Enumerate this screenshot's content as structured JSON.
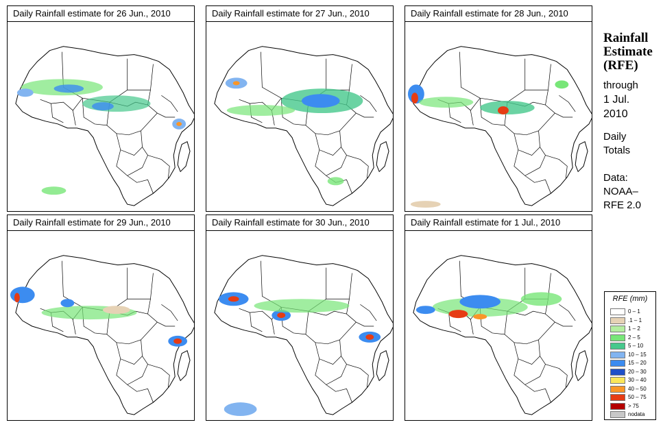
{
  "panels": [
    {
      "title": "Daily Rainfall estimate for  26 Jun., 2010"
    },
    {
      "title": "Daily Rainfall estimate for  27 Jun., 2010"
    },
    {
      "title": "Daily Rainfall estimate for  28 Jun., 2010"
    },
    {
      "title": "Daily Rainfall estimate for  29 Jun., 2010"
    },
    {
      "title": "Daily Rainfall estimate for  30 Jun., 2010"
    },
    {
      "title": "Daily Rainfall estimate for  1 Jul., 2010"
    }
  ],
  "sidebar": {
    "title_line1": "Rainfall",
    "title_line2": "Estimate",
    "title_line3": "(RFE)",
    "through_label": "through",
    "through_date_line1": "1 Jul.",
    "through_date_line2": "2010",
    "totals_line1": "Daily",
    "totals_line2": "Totals",
    "data_label": "Data:",
    "source_line1": "NOAA–",
    "source_line2": "RFE 2.0"
  },
  "legend": {
    "title": "RFE (mm)",
    "items": [
      {
        "label": "0 – 1",
        "color": "#ffffff"
      },
      {
        "label": ".1 – 1",
        "color": "#e6d2b5"
      },
      {
        "label": "1 – 2",
        "color": "#b4eea0"
      },
      {
        "label": "2 – 5",
        "color": "#78e678"
      },
      {
        "label": "5 – 10",
        "color": "#46c88c"
      },
      {
        "label": "10 – 15",
        "color": "#82b4f0"
      },
      {
        "label": "15 – 20",
        "color": "#3c8cf0"
      },
      {
        "label": "20 – 30",
        "color": "#1e50c8"
      },
      {
        "label": "30 – 40",
        "color": "#fae65a"
      },
      {
        "label": "40 – 50",
        "color": "#fa9628"
      },
      {
        "label": "50 – 75",
        "color": "#e63c14"
      },
      {
        "label": "> 75",
        "color": "#b40000"
      },
      {
        "label": "nodata",
        "color": "#c8c8c8"
      }
    ]
  }
}
